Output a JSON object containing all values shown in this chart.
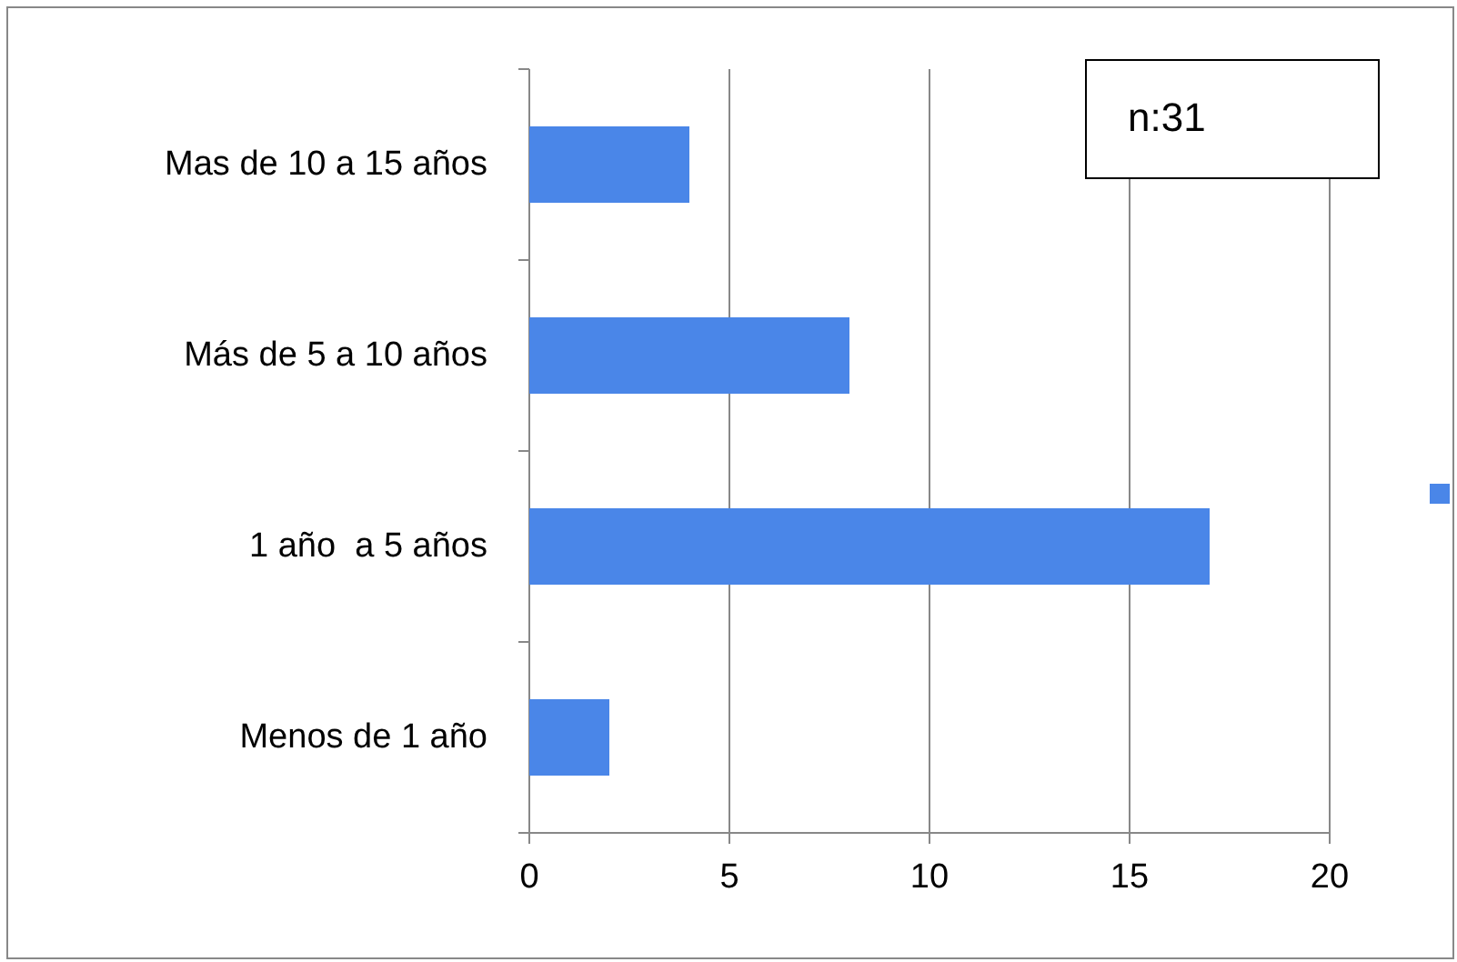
{
  "chart_data": {
    "type": "bar",
    "orientation": "horizontal",
    "categories": [
      "Mas de 10 a 15 años",
      "Más de 5 a 10 años",
      "1 año  a 5 años",
      "Menos de 1 año"
    ],
    "series": [
      {
        "color": "#4a86e8",
        "values": [
          4,
          8,
          17,
          2
        ]
      }
    ],
    "xlim": [
      0,
      20
    ],
    "xticks": [
      0,
      5,
      10,
      15,
      20
    ],
    "grid": "x",
    "annotations": [
      "n:31"
    ]
  }
}
